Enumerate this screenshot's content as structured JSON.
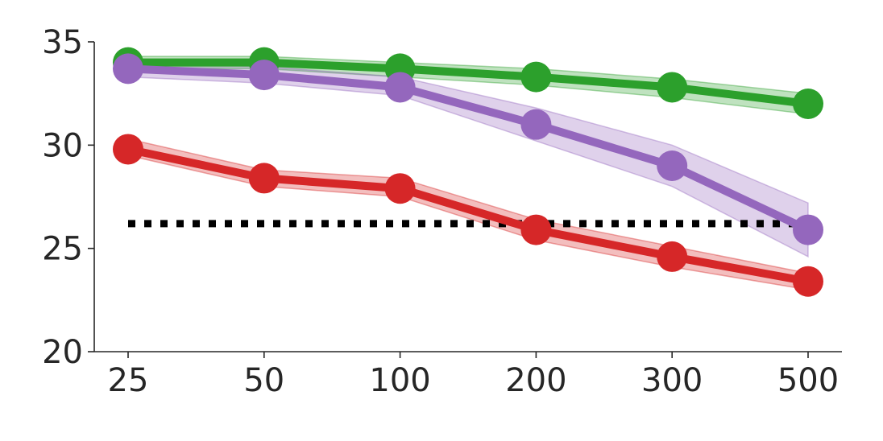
{
  "chart_data": {
    "type": "line",
    "title": "",
    "xlabel": "",
    "ylabel": "",
    "categories": [
      "25",
      "50",
      "100",
      "200",
      "300",
      "500"
    ],
    "ylim": [
      20,
      35
    ],
    "yticks": [
      "20",
      "25",
      "30",
      "35"
    ],
    "grid": false,
    "legend": "none",
    "series": [
      {
        "color": "#2ca02c",
        "values": [
          34.0,
          34.0,
          33.7,
          33.3,
          32.8,
          32.0
        ],
        "lower": [
          33.7,
          33.7,
          33.3,
          32.9,
          32.3,
          31.5
        ],
        "upper": [
          34.3,
          34.3,
          34.0,
          33.7,
          33.2,
          32.5
        ]
      },
      {
        "color": "#9467bd",
        "values": [
          33.7,
          33.4,
          32.8,
          31.0,
          29.0,
          25.9
        ],
        "lower": [
          33.3,
          33.0,
          32.4,
          30.2,
          28.0,
          24.6
        ],
        "upper": [
          34.0,
          33.8,
          33.3,
          31.8,
          30.0,
          27.2
        ]
      },
      {
        "color": "#d62728",
        "values": [
          29.8,
          28.4,
          27.9,
          25.9,
          24.6,
          23.4
        ],
        "lower": [
          29.5,
          28.0,
          27.5,
          25.4,
          24.1,
          23.0
        ],
        "upper": [
          30.3,
          28.8,
          28.4,
          26.4,
          25.1,
          23.8
        ]
      }
    ],
    "reference_line": {
      "y": 26.2,
      "style": "dotted",
      "color": "#000000"
    }
  }
}
